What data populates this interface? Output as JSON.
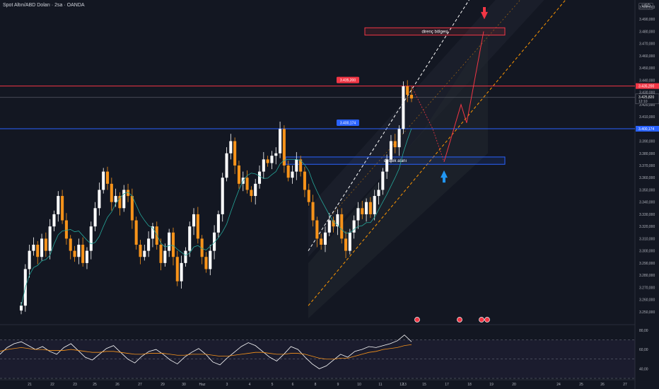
{
  "header": {
    "title": "Spot Altın/ABD Doları · 2sa · OANDA",
    "currency": "USD"
  },
  "colors": {
    "background": "#131722",
    "bull": "#ffffff",
    "bear": "#f7931a",
    "resistance_line": "#f23645",
    "support_line": "#2962ff",
    "ma_line": "#26a69a",
    "rsi_line": "#ffffff",
    "rsi_ma": "#f7931a",
    "channel_dash_upper": "#ffffff",
    "channel_dash_lower": "#ff9800",
    "projection": "#f23645",
    "arrow_up": "#2196f3"
  },
  "chart_data": [
    {
      "type": "candlestick",
      "title": "Spot Altın/ABD Doları · 2sa · OANDA",
      "ylim": [
        3240,
        3500
      ],
      "y_ticks": [
        3500,
        3490,
        3480,
        3470,
        3460,
        3450,
        3440,
        3430,
        3420,
        3410,
        3390,
        3380,
        3370,
        3360,
        3350,
        3340,
        3330,
        3320,
        3310,
        3300,
        3290,
        3280,
        3270,
        3260,
        3250
      ],
      "x_tick_labels": [
        "21",
        "22",
        "23",
        "25",
        "26",
        "27",
        "29",
        "30",
        "Haz",
        "3",
        "4",
        "5",
        "6",
        "8",
        "9",
        "10",
        "11",
        "12",
        "13",
        "15",
        "17",
        "18",
        "19",
        "20",
        "24",
        "25",
        "26",
        "27"
      ],
      "close_path": [
        3255,
        3285,
        3300,
        3305,
        3295,
        3310,
        3300,
        3320,
        3330,
        3345,
        3325,
        3310,
        3300,
        3295,
        3305,
        3290,
        3300,
        3320,
        3335,
        3350,
        3365,
        3355,
        3340,
        3345,
        3335,
        3350,
        3345,
        3325,
        3305,
        3295,
        3300,
        3310,
        3320,
        3305,
        3290,
        3300,
        3315,
        3295,
        3275,
        3290,
        3300,
        3320,
        3330,
        3310,
        3295,
        3285,
        3300,
        3315,
        3330,
        3360,
        3380,
        3390,
        3370,
        3355,
        3360,
        3350,
        3345,
        3355,
        3365,
        3375,
        3372,
        3378,
        3380,
        3400,
        3370,
        3360,
        3365,
        3375,
        3365,
        3350,
        3340,
        3325,
        3310,
        3305,
        3315,
        3325,
        3320,
        3330,
        3310,
        3300,
        3315,
        3325,
        3335,
        3330,
        3340,
        3330,
        3345,
        3350,
        3365,
        3375,
        3390,
        3385,
        3400,
        3435,
        3428,
        3425
      ],
      "price_labels": [
        {
          "label": "3.435,200",
          "value": 3435.2
        },
        {
          "label": "3.400,174",
          "value": 3400.174
        },
        {
          "label": "3.425,820",
          "value": 3425.82,
          "sub": "12:10"
        }
      ],
      "horizontal_lines": [
        {
          "name": "resistance",
          "value": 3435.2
        },
        {
          "name": "support",
          "value": 3400.174
        }
      ],
      "zones": [
        {
          "label": "direnç bölgesi",
          "from": 3477,
          "to": 3483
        },
        {
          "label": "destek alanı",
          "from": 3371,
          "to": 3377
        }
      ],
      "projection": [
        3435,
        3400,
        3373,
        3420,
        3405,
        3480
      ]
    },
    {
      "type": "line",
      "title": "RSI",
      "ylim": [
        30,
        85
      ],
      "y_ticks": [
        80,
        60,
        40
      ],
      "y_tick_labels": [
        "80,00",
        "60,00",
        "40,00"
      ],
      "series": [
        {
          "values": [
            55,
            62,
            66,
            68,
            64,
            60,
            63,
            58,
            55,
            62,
            66,
            59,
            52,
            49,
            55,
            61,
            64,
            57,
            50,
            46,
            53,
            58,
            60,
            55,
            49,
            45,
            52,
            57,
            61,
            55,
            47,
            44,
            51,
            57,
            63,
            67,
            64,
            58,
            52,
            48,
            55,
            63,
            60,
            52,
            45,
            40,
            43,
            49,
            55,
            52,
            58,
            60,
            63,
            62,
            64,
            66,
            69,
            75,
            68
          ]
        },
        {
          "values": [
            58,
            60,
            61,
            62,
            61,
            60,
            60,
            59,
            59,
            59,
            60,
            59,
            58,
            57,
            57,
            58,
            58,
            57,
            56,
            55,
            55,
            56,
            56,
            56,
            55,
            54,
            54,
            55,
            55,
            55,
            54,
            53,
            53,
            54,
            55,
            56,
            57,
            57,
            56,
            55,
            55,
            56,
            56,
            55,
            53,
            51,
            50,
            50,
            51,
            51,
            53,
            55,
            57,
            58,
            60,
            61,
            62,
            64,
            65
          ]
        }
      ]
    }
  ]
}
